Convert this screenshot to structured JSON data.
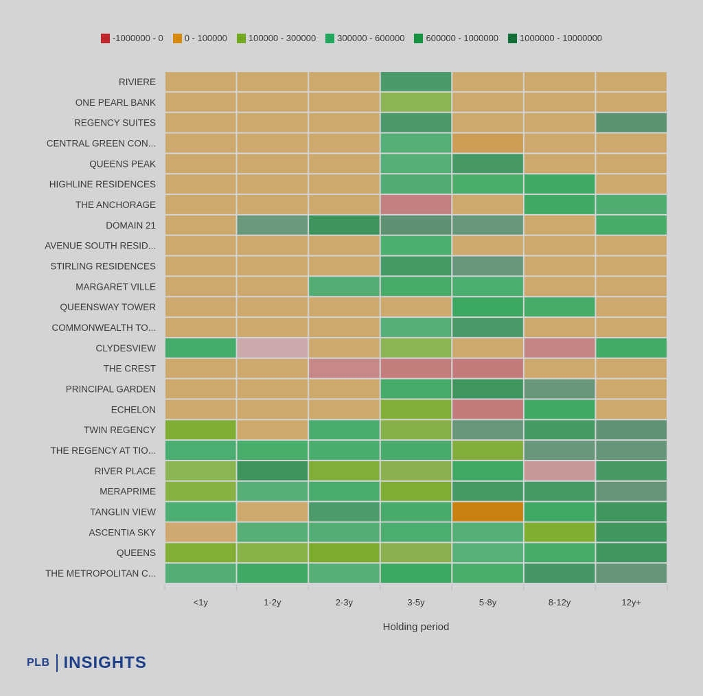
{
  "chart_data": {
    "type": "heatmap",
    "title": "",
    "xlabel": "Holding period",
    "ylabel": "",
    "x_categories": [
      "<1y",
      "1-2y",
      "2-3y",
      "3-5y",
      "5-8y",
      "8-12y",
      "12y+"
    ],
    "y_categories": [
      "RIVIERE",
      "ONE PEARL BANK",
      "REGENCY SUITES",
      "CENTRAL GREEN CON...",
      "QUEENS PEAK",
      "HIGHLINE RESIDENCES",
      "THE ANCHORAGE",
      "DOMAIN 21",
      "AVENUE SOUTH RESID...",
      "STIRLING RESIDENCES",
      "MARGARET VILLE",
      "QUEENSWAY TOWER",
      "COMMONWEALTH TO...",
      "CLYDESVIEW",
      "THE CREST",
      "PRINCIPAL GARDEN",
      "ECHELON",
      "TWIN REGENCY",
      "THE REGENCY AT TIO...",
      "RIVER PLACE",
      "MERAPRIME",
      "TANGLIN VIEW",
      "ASCENTIA SKY",
      "QUEENS",
      "THE METROPOLITAN C..."
    ],
    "legend": {
      "placement": "top-center",
      "entries": [
        {
          "label": "-1000000 - 0",
          "color": "#c0272d"
        },
        {
          "label": "0 - 100000",
          "color": "#d68a0c"
        },
        {
          "label": "100000 - 300000",
          "color": "#74a81f"
        },
        {
          "label": "300000 - 600000",
          "color": "#21a65b"
        },
        {
          "label": "600000 - 1000000",
          "color": "#16913f"
        },
        {
          "label": "1000000 - 10000000",
          "color": "#136f36"
        }
      ]
    },
    "cell_colors": [
      [
        "#cda96e",
        "#cda96e",
        "#cda96e",
        "#4a9a6a",
        "#cda96e",
        "#cda96e",
        "#cda96e"
      ],
      [
        "#cda96e",
        "#cda96e",
        "#cda96e",
        "#8db452",
        "#cda96e",
        "#cda96e",
        "#cda96e"
      ],
      [
        "#cda96e",
        "#cda96e",
        "#cda96e",
        "#4b996b",
        "#cda96e",
        "#cda96e",
        "#5c9472"
      ],
      [
        "#cda96e",
        "#cda96e",
        "#cda96e",
        "#55b077",
        "#cb9d55",
        "#cda96e",
        "#cda96e"
      ],
      [
        "#cda96e",
        "#cda96e",
        "#cda96e",
        "#55b077",
        "#479a65",
        "#cda96e",
        "#cda96e"
      ],
      [
        "#cda96e",
        "#cda96e",
        "#cda96e",
        "#50ac72",
        "#4aae6a",
        "#40aa65",
        "#cda96e"
      ],
      [
        "#cda96e",
        "#cda96e",
        "#cda96e",
        "#c38080",
        "#cda96e",
        "#40aa65",
        "#50ad72"
      ],
      [
        "#cda96e",
        "#6a987c",
        "#3d945c",
        "#5f9273",
        "#67977a",
        "#cda96e",
        "#48ab6a"
      ],
      [
        "#cda96e",
        "#cda96e",
        "#cda96e",
        "#4caf6f",
        "#cda96e",
        "#cda96e",
        "#cda96e"
      ],
      [
        "#cda96e",
        "#cda96e",
        "#cda96e",
        "#469a66",
        "#67977a",
        "#cda96e",
        "#cda96e"
      ],
      [
        "#cda96e",
        "#cda96e",
        "#53ae75",
        "#48ab6a",
        "#4cae6e",
        "#cda96e",
        "#cda96e"
      ],
      [
        "#cda96e",
        "#cda96e",
        "#cda96e",
        "#cda96e",
        "#3da862",
        "#47ab6a",
        "#cda96e"
      ],
      [
        "#cda96e",
        "#cda96e",
        "#cda96e",
        "#55af77",
        "#4a9a69",
        "#cda96e",
        "#cda96e"
      ],
      [
        "#44ab6a",
        "#c9a9aa",
        "#cda96e",
        "#8db452",
        "#cda96e",
        "#c58484",
        "#44aa67"
      ],
      [
        "#cda96e",
        "#cda96e",
        "#c78888",
        "#c47d7d",
        "#c37a7a",
        "#cda96e",
        "#cda96e"
      ],
      [
        "#cda96e",
        "#cda96e",
        "#cda96e",
        "#46ab6a",
        "#40965f",
        "#68977a",
        "#cda96e"
      ],
      [
        "#cda96e",
        "#cda96e",
        "#cda96e",
        "#80ae36",
        "#c37a7a",
        "#3ea864",
        "#cda96e"
      ],
      [
        "#80ae34",
        "#cda96e",
        "#4aad6e",
        "#88b048",
        "#67967a",
        "#469a66",
        "#5f9373"
      ],
      [
        "#4aad72",
        "#49ad6b",
        "#4aad6e",
        "#48ab6c",
        "#84ae3c",
        "#689779",
        "#649577"
      ],
      [
        "#8bb452",
        "#3d945c",
        "#82ae38",
        "#8ab14e",
        "#3ea864",
        "#c89899",
        "#479a66"
      ],
      [
        "#88b144",
        "#55af77",
        "#48ad6c",
        "#80ae34",
        "#469a66",
        "#459a66",
        "#649577"
      ],
      [
        "#4cae72",
        "#cda96e",
        "#4c9b6b",
        "#48ab6c",
        "#c8810e",
        "#3ea864",
        "#40965f"
      ],
      [
        "#cfa96f",
        "#55af77",
        "#53ae76",
        "#4cad70",
        "#55b077",
        "#80ae2f",
        "#40965f"
      ],
      [
        "#82ae36",
        "#89b248",
        "#7dab2b",
        "#8ab14e",
        "#56b178",
        "#47ac6a",
        "#40965f"
      ],
      [
        "#53ae76",
        "#3ea864",
        "#55af77",
        "#3ca862",
        "#49ad6b",
        "#459866",
        "#649577"
      ]
    ],
    "grid": false
  },
  "branding": {
    "logo_prefix": "PLB",
    "logo_name": "INSIGHTS"
  }
}
